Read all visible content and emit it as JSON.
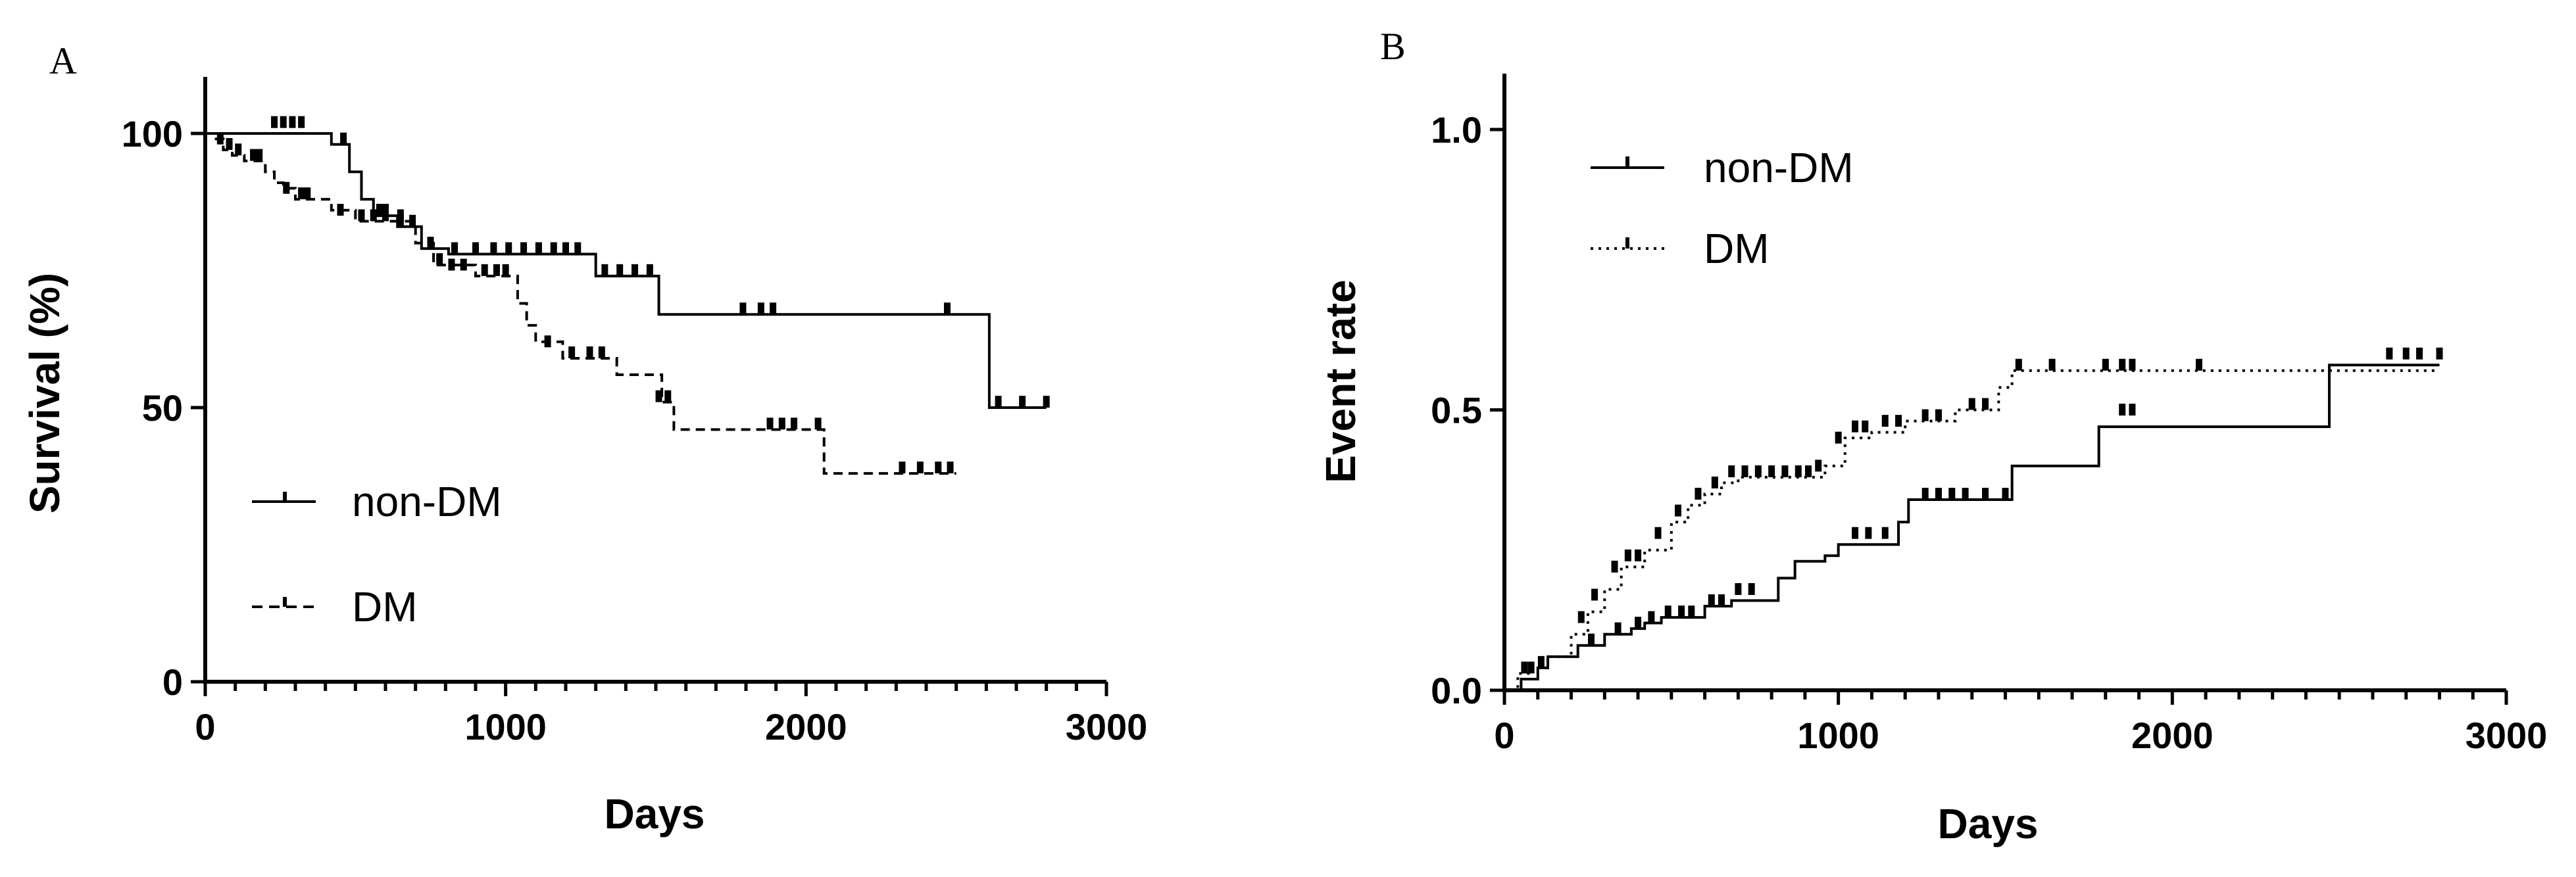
{
  "chart_data": [
    {
      "panel_label": "A",
      "type": "line",
      "step": true,
      "xlabel": "Days",
      "ylabel": "Survival (%)",
      "xlim": [
        0,
        3000
      ],
      "ylim": [
        0,
        110
      ],
      "xticks": [
        0,
        1000,
        2000,
        3000
      ],
      "yticks": [
        0,
        50,
        100
      ],
      "grid": false,
      "legend_position": "lower-left",
      "series": [
        {
          "name": "non-DM",
          "line_style": "solid",
          "x": [
            0,
            420,
            480,
            520,
            560,
            640,
            720,
            810,
            1300,
            1510,
            2610,
            2800
          ],
          "y": [
            100,
            98,
            93,
            88,
            85,
            83,
            79,
            78,
            74,
            67,
            50,
            50
          ],
          "censored": [
            [
              230,
              101
            ],
            [
              260,
              101
            ],
            [
              290,
              101
            ],
            [
              320,
              101
            ],
            [
              460,
              98
            ],
            [
              580,
              85
            ],
            [
              600,
              85
            ],
            [
              650,
              83
            ],
            [
              690,
              83
            ],
            [
              750,
              79
            ],
            [
              830,
              78
            ],
            [
              900,
              78
            ],
            [
              960,
              78
            ],
            [
              1010,
              78
            ],
            [
              1060,
              78
            ],
            [
              1110,
              78
            ],
            [
              1160,
              78
            ],
            [
              1200,
              78
            ],
            [
              1240,
              78
            ],
            [
              1330,
              74
            ],
            [
              1380,
              74
            ],
            [
              1430,
              74
            ],
            [
              1480,
              74
            ],
            [
              1790,
              67
            ],
            [
              1850,
              67
            ],
            [
              1890,
              67
            ],
            [
              2470,
              67
            ],
            [
              2640,
              50
            ],
            [
              2720,
              50
            ],
            [
              2800,
              50
            ]
          ]
        },
        {
          "name": "DM",
          "line_style": "dashed",
          "x": [
            0,
            30,
            60,
            90,
            130,
            200,
            230,
            260,
            300,
            420,
            500,
            700,
            760,
            900,
            1040,
            1070,
            1100,
            1190,
            1370,
            1520,
            1560,
            2060,
            2500
          ],
          "y": [
            100,
            99,
            97,
            96,
            95,
            93,
            91,
            90,
            88,
            86,
            84,
            80,
            76,
            74,
            69,
            65,
            62,
            59,
            56,
            51,
            46,
            38,
            38
          ],
          "censored": [
            [
              50,
              98
            ],
            [
              80,
              97
            ],
            [
              110,
              96
            ],
            [
              160,
              95
            ],
            [
              180,
              95
            ],
            [
              270,
              89
            ],
            [
              320,
              88
            ],
            [
              340,
              88
            ],
            [
              450,
              85
            ],
            [
              520,
              84
            ],
            [
              560,
              84
            ],
            [
              600,
              84
            ],
            [
              650,
              84
            ],
            [
              780,
              76
            ],
            [
              820,
              75
            ],
            [
              860,
              75
            ],
            [
              930,
              74
            ],
            [
              970,
              74
            ],
            [
              1000,
              74
            ],
            [
              1140,
              61
            ],
            [
              1220,
              59
            ],
            [
              1280,
              59
            ],
            [
              1320,
              59
            ],
            [
              1510,
              51
            ],
            [
              1540,
              51
            ],
            [
              1880,
              46
            ],
            [
              1920,
              46
            ],
            [
              1960,
              46
            ],
            [
              2040,
              46
            ],
            [
              2320,
              38
            ],
            [
              2380,
              38
            ],
            [
              2440,
              38
            ],
            [
              2480,
              38
            ]
          ]
        }
      ]
    },
    {
      "panel_label": "B",
      "type": "line",
      "step": true,
      "xlabel": "Days",
      "ylabel": "Event rate",
      "xlim": [
        0,
        3000
      ],
      "ylim": [
        0,
        1.1
      ],
      "xticks": [
        0,
        1000,
        2000,
        3000
      ],
      "yticks": [
        0.0,
        0.5,
        1.0
      ],
      "grid": false,
      "legend_position": "upper-left",
      "series": [
        {
          "name": "non-DM",
          "line_style": "solid",
          "x": [
            0,
            50,
            100,
            130,
            220,
            300,
            380,
            420,
            470,
            600,
            680,
            820,
            870,
            960,
            1000,
            1180,
            1210,
            1520,
            1780,
            2470,
            2800
          ],
          "y": [
            0.0,
            0.02,
            0.04,
            0.06,
            0.08,
            0.1,
            0.11,
            0.12,
            0.13,
            0.15,
            0.16,
            0.2,
            0.23,
            0.24,
            0.26,
            0.3,
            0.34,
            0.4,
            0.47,
            0.58,
            0.58
          ],
          "censored": [
            [
              80,
              0.03
            ],
            [
              260,
              0.08
            ],
            [
              340,
              0.1
            ],
            [
              400,
              0.11
            ],
            [
              440,
              0.12
            ],
            [
              490,
              0.13
            ],
            [
              530,
              0.13
            ],
            [
              560,
              0.13
            ],
            [
              620,
              0.15
            ],
            [
              650,
              0.15
            ],
            [
              700,
              0.17
            ],
            [
              740,
              0.17
            ],
            [
              1050,
              0.27
            ],
            [
              1090,
              0.27
            ],
            [
              1140,
              0.27
            ],
            [
              1260,
              0.34
            ],
            [
              1300,
              0.34
            ],
            [
              1340,
              0.34
            ],
            [
              1380,
              0.34
            ],
            [
              1440,
              0.34
            ],
            [
              1500,
              0.34
            ],
            [
              1850,
              0.49
            ],
            [
              1880,
              0.49
            ],
            [
              2650,
              0.59
            ],
            [
              2700,
              0.59
            ],
            [
              2740,
              0.59
            ],
            [
              2800,
              0.59
            ]
          ]
        },
        {
          "name": "DM",
          "line_style": "dotted",
          "x": [
            0,
            40,
            80,
            130,
            200,
            250,
            300,
            350,
            420,
            500,
            550,
            600,
            650,
            700,
            960,
            1020,
            1100,
            1200,
            1350,
            1480,
            1520,
            2800
          ],
          "y": [
            0.0,
            0.03,
            0.04,
            0.06,
            0.1,
            0.14,
            0.18,
            0.22,
            0.25,
            0.3,
            0.33,
            0.35,
            0.37,
            0.38,
            0.4,
            0.45,
            0.46,
            0.48,
            0.5,
            0.54,
            0.57,
            0.57
          ],
          "censored": [
            [
              60,
              0.03
            ],
            [
              110,
              0.04
            ],
            [
              230,
              0.12
            ],
            [
              270,
              0.16
            ],
            [
              330,
              0.21
            ],
            [
              370,
              0.23
            ],
            [
              400,
              0.23
            ],
            [
              460,
              0.27
            ],
            [
              520,
              0.31
            ],
            [
              580,
              0.34
            ],
            [
              630,
              0.36
            ],
            [
              680,
              0.38
            ],
            [
              720,
              0.38
            ],
            [
              760,
              0.38
            ],
            [
              800,
              0.38
            ],
            [
              840,
              0.38
            ],
            [
              880,
              0.38
            ],
            [
              910,
              0.38
            ],
            [
              940,
              0.39
            ],
            [
              1000,
              0.44
            ],
            [
              1050,
              0.46
            ],
            [
              1080,
              0.46
            ],
            [
              1140,
              0.47
            ],
            [
              1180,
              0.47
            ],
            [
              1260,
              0.48
            ],
            [
              1300,
              0.48
            ],
            [
              1400,
              0.5
            ],
            [
              1440,
              0.5
            ],
            [
              1540,
              0.57
            ],
            [
              1640,
              0.57
            ],
            [
              1800,
              0.57
            ],
            [
              1850,
              0.57
            ],
            [
              1880,
              0.57
            ],
            [
              2080,
              0.57
            ]
          ]
        }
      ]
    }
  ]
}
